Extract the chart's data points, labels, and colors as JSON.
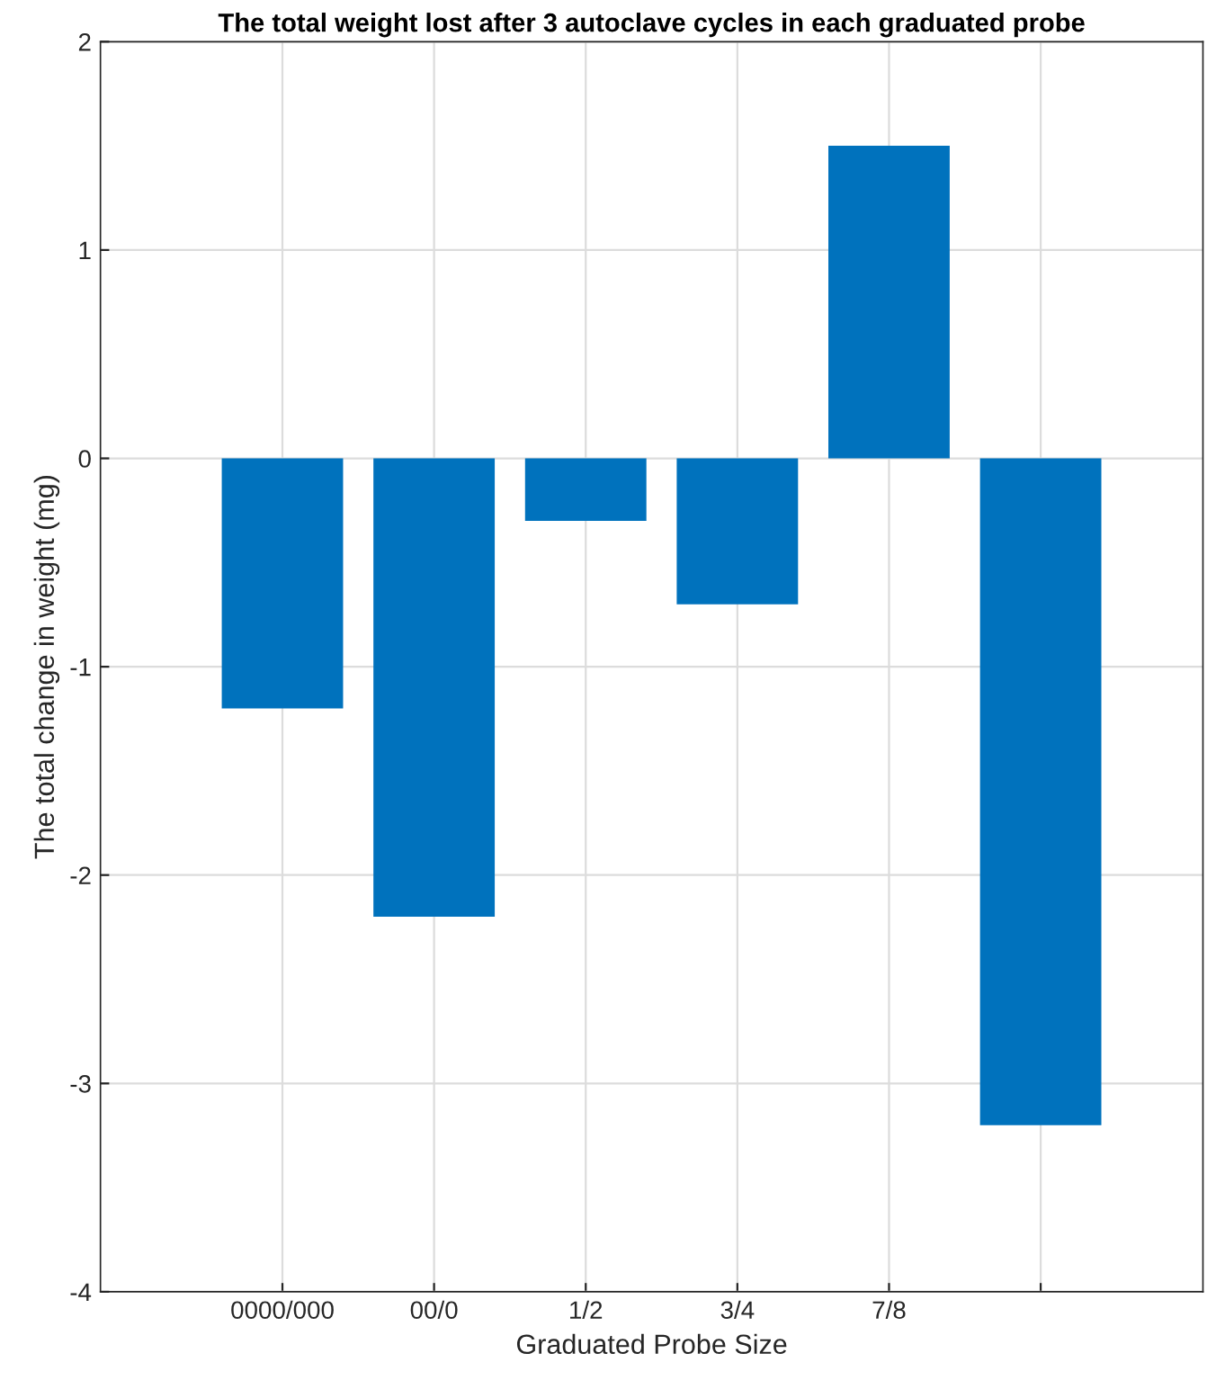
{
  "chart_data": {
    "type": "bar",
    "title": "The total weight lost after 3 autoclave cycles in each graduated probe",
    "xlabel": "Graduated Probe Size",
    "ylabel": "The total change in weight (mg)",
    "categories": [
      "0000/000",
      "00/0",
      "1/2",
      "3/4",
      "7/8",
      null
    ],
    "values": [
      -1.2,
      -2.2,
      -0.3,
      -0.7,
      1.5,
      -3.2
    ],
    "color": "#0072bd",
    "ylim": [
      -4,
      2
    ],
    "yticks": [
      -4,
      -3,
      -2,
      -1,
      0,
      1,
      2
    ],
    "grid": true
  }
}
